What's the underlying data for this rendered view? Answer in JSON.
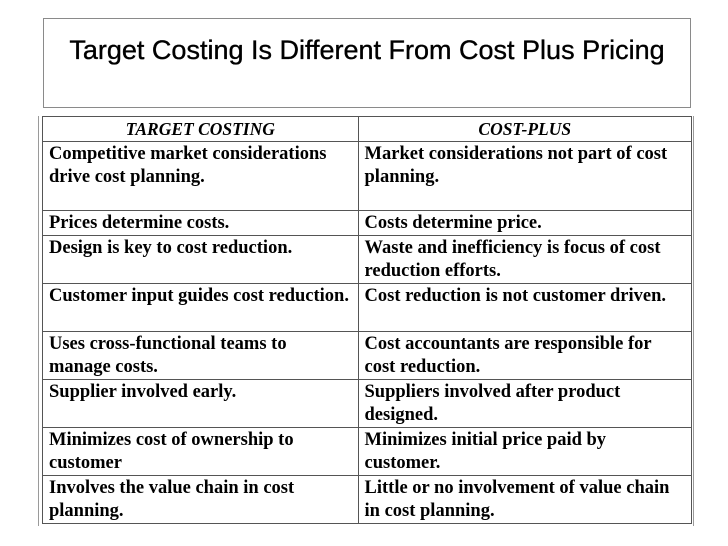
{
  "slide": {
    "title": "Target Costing Is Different From Cost Plus Pricing"
  },
  "table": {
    "headers": [
      "TARGET COSTING",
      "COST-PLUS"
    ],
    "rows": [
      [
        "Competitive market considerations drive cost planning.",
        "Market considerations not part of cost planning."
      ],
      [
        "Prices determine costs.",
        "Costs determine price."
      ],
      [
        "Design is key to cost reduction.",
        "Waste and inefficiency is focus of cost reduction efforts."
      ],
      [
        "Customer input guides cost reduction.",
        "Cost reduction is not customer driven."
      ],
      [
        "Uses cross-functional teams to manage costs.",
        "Cost accountants are responsible for cost reduction."
      ],
      [
        "Supplier involved early.",
        "Suppliers involved after product designed."
      ],
      [
        "Minimizes cost of ownership to customer",
        "Minimizes initial price paid by customer."
      ],
      [
        "Involves the value chain in cost planning.",
        "Little or no involvement of value chain in cost planning."
      ]
    ]
  }
}
